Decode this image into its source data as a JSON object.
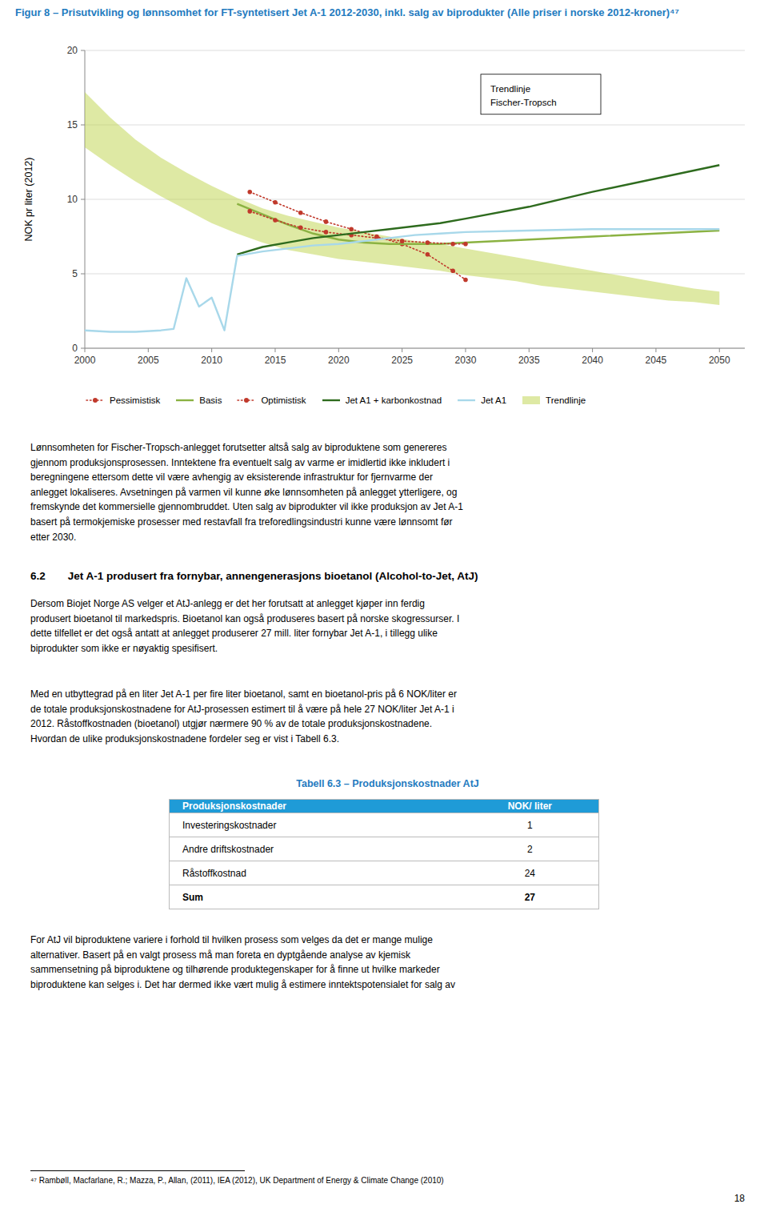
{
  "chart_data": {
    "type": "line",
    "title": "Figur 8 – Prisutvikling og lønnsomhet for FT-syntetisert Jet A-1 2012-2030, inkl. salg av biprodukter (Alle priser i norske 2012-kroner)⁴⁷",
    "ylabel": "NOK pr liter (2012)",
    "xlim": [
      2000,
      2052
    ],
    "xticks": [
      2000,
      2005,
      2010,
      2015,
      2020,
      2025,
      2030,
      2035,
      2040,
      2045,
      2050
    ],
    "ylim": [
      0,
      20
    ],
    "yticks": [
      0,
      5,
      10,
      15,
      20
    ],
    "grid": true,
    "legend": "bottom",
    "annotation": "Trendlinje\nFischer-Tropsch",
    "series": [
      {
        "name": "Pessimistisk",
        "color": "#C0392B",
        "marker": "circle",
        "line_style": "dotted",
        "x": [
          2013,
          2015,
          2017,
          2019,
          2021,
          2023,
          2025,
          2027,
          2029,
          2030
        ],
        "values": [
          10.5,
          9.8,
          9.1,
          8.5,
          8.0,
          7.5,
          7.0,
          6.3,
          5.2,
          4.6
        ]
      },
      {
        "name": "Basis",
        "color": "#8BB242",
        "line_style": "solid",
        "x": [
          2012,
          2014,
          2016,
          2018,
          2020,
          2022,
          2024,
          2026,
          2028,
          2030,
          2035,
          2040,
          2045,
          2050
        ],
        "values": [
          9.7,
          9.0,
          8.3,
          7.7,
          7.3,
          7.1,
          7.0,
          7.0,
          7.0,
          7.1,
          7.3,
          7.5,
          7.7,
          7.9
        ]
      },
      {
        "name": "Optimistisk",
        "color": "#C0392B",
        "marker": "circle",
        "line_style": "dotted",
        "x": [
          2013,
          2015,
          2017,
          2019,
          2021,
          2023,
          2025,
          2027,
          2029,
          2030
        ],
        "values": [
          9.2,
          8.6,
          8.1,
          7.8,
          7.6,
          7.4,
          7.2,
          7.1,
          7.0,
          7.0
        ]
      },
      {
        "name": "Jet A1 + karbonkostnad",
        "color": "#2E6B1E",
        "line_style": "solid",
        "x": [
          2012,
          2014,
          2016,
          2018,
          2020,
          2022,
          2024,
          2026,
          2028,
          2030,
          2035,
          2040,
          2045,
          2050
        ],
        "values": [
          6.3,
          6.8,
          7.1,
          7.4,
          7.6,
          7.8,
          8.0,
          8.2,
          8.4,
          8.7,
          9.5,
          10.5,
          11.4,
          12.3
        ]
      },
      {
        "name": "Jet A1",
        "color": "#A8D8EA",
        "line_style": "solid",
        "x": [
          2000,
          2002,
          2004,
          2006,
          2007,
          2008,
          2009,
          2010,
          2011,
          2012,
          2014,
          2016,
          2018,
          2020,
          2022,
          2024,
          2026,
          2028,
          2030,
          2035,
          2040,
          2045,
          2050
        ],
        "values": [
          1.2,
          1.1,
          1.1,
          1.2,
          1.3,
          4.7,
          2.8,
          3.4,
          1.2,
          6.2,
          6.5,
          6.7,
          6.9,
          7.0,
          7.2,
          7.4,
          7.6,
          7.7,
          7.8,
          7.9,
          8.0,
          8.0,
          8.0
        ]
      },
      {
        "name": "Trendlinje",
        "type": "area",
        "color": "#BDD44A",
        "x": [
          2000,
          2002,
          2004,
          2006,
          2008,
          2010,
          2012,
          2014,
          2016,
          2018,
          2020,
          2022,
          2024,
          2026,
          2028,
          2030,
          2032,
          2034,
          2036,
          2038,
          2040,
          2042,
          2044,
          2046,
          2048,
          2050
        ],
        "lower": [
          13.5,
          12.3,
          11.2,
          10.2,
          9.3,
          8.4,
          7.7,
          7.1,
          6.6,
          6.3,
          6.0,
          5.8,
          5.6,
          5.4,
          5.2,
          4.9,
          4.7,
          4.5,
          4.2,
          4.0,
          3.8,
          3.6,
          3.4,
          3.2,
          3.1,
          2.9
        ],
        "upper": [
          17.2,
          15.5,
          14.0,
          12.8,
          11.8,
          10.9,
          10.1,
          9.4,
          8.9,
          8.5,
          8.1,
          7.8,
          7.5,
          7.2,
          7.0,
          6.7,
          6.4,
          6.1,
          5.8,
          5.5,
          5.2,
          4.9,
          4.6,
          4.3,
          4.0,
          3.8
        ]
      }
    ]
  },
  "page": {
    "body_text_1": "Lønnsomheten for Fischer-Tropsch-anlegget forutsetter altså salg av biproduktene som genereres\ngjennom produksjonsprosessen. Inntektene fra eventuelt salg av varme er imidlertid ikke inkludert i\nberegningene ettersom dette vil være avhengig av eksisterende infrastruktur for fjernvarme der\nanlegget lokaliseres. Avsetningen på varmen vil kunne øke lønnsomheten på anlegget ytterligere, og\nfremskynde det kommersielle gjennombruddet. Uten salg av biprodukter vil ikke produksjon av Jet A-1\nbasert på termokjemiske prosesser med restavfall fra treforedlingsindustri kunne være lønnsomt før\netter 2030.",
    "section_number": "6.2",
    "section_title": "Jet A-1 produsert fra fornybar, annengenerasjons bioetanol (Alcohol-to-Jet, AtJ)",
    "body_text_2": "Dersom Biojet Norge AS velger et AtJ-anlegg er det her forutsatt at anlegget kjøper inn ferdig\nprodusert bioetanol til markedspris. Bioetanol kan også produseres basert på norske skogressurser. I\ndette tilfellet er det også antatt at anlegget produserer 27 mill. liter fornybar Jet A-1, i tillegg ulike\nbiprodukter som ikke er nøyaktig spesifisert.",
    "body_text_3": "Med en utbyttegrad på en liter Jet A-1 per fire liter bioetanol, samt en bioetanol-pris på 6 NOK/liter er\nde totale produksjonskostnadene for AtJ-prosessen estimert til å være på hele 27 NOK/liter Jet A-1 i\n2012. Råstoffkostnaden (bioetanol) utgjør nærmere 90 % av de totale produksjonskostnadene.\nHvordan de ulike produksjonskostnadene fordeler seg er vist i Tabell 6.3.",
    "table": {
      "title": "Tabell 6.3 – Produksjonskostnader AtJ",
      "color": "#1F9BD7",
      "header": [
        "Produksjonskostnader",
        "NOK/ liter"
      ],
      "rows": [
        [
          "Investeringskostnader",
          "1"
        ],
        [
          "Andre driftskostnader",
          "2"
        ],
        [
          "Råstoffkostnad",
          "24"
        ],
        [
          "Sum",
          "27"
        ]
      ]
    },
    "body_text_4": "For AtJ vil biproduktene variere i forhold til hvilken prosess som velges da det er mange mulige\nalternativer. Basert på en valgt prosess må man foreta en dyptgående analyse av kjemisk\nsammensetning på biproduktene og tilhørende produktegenskaper for å finne ut hvilke markeder\nbiproduktene kan selges i. Det har dermed ikke vært mulig å estimere inntektspotensialet for salg av",
    "footnote": "⁴⁷ Rambøll, Macfarlane, R.; Mazza, P., Allan, (2011), IEA (2012), UK Department of Energy & Climate Change (2010)",
    "page_number": "18"
  }
}
